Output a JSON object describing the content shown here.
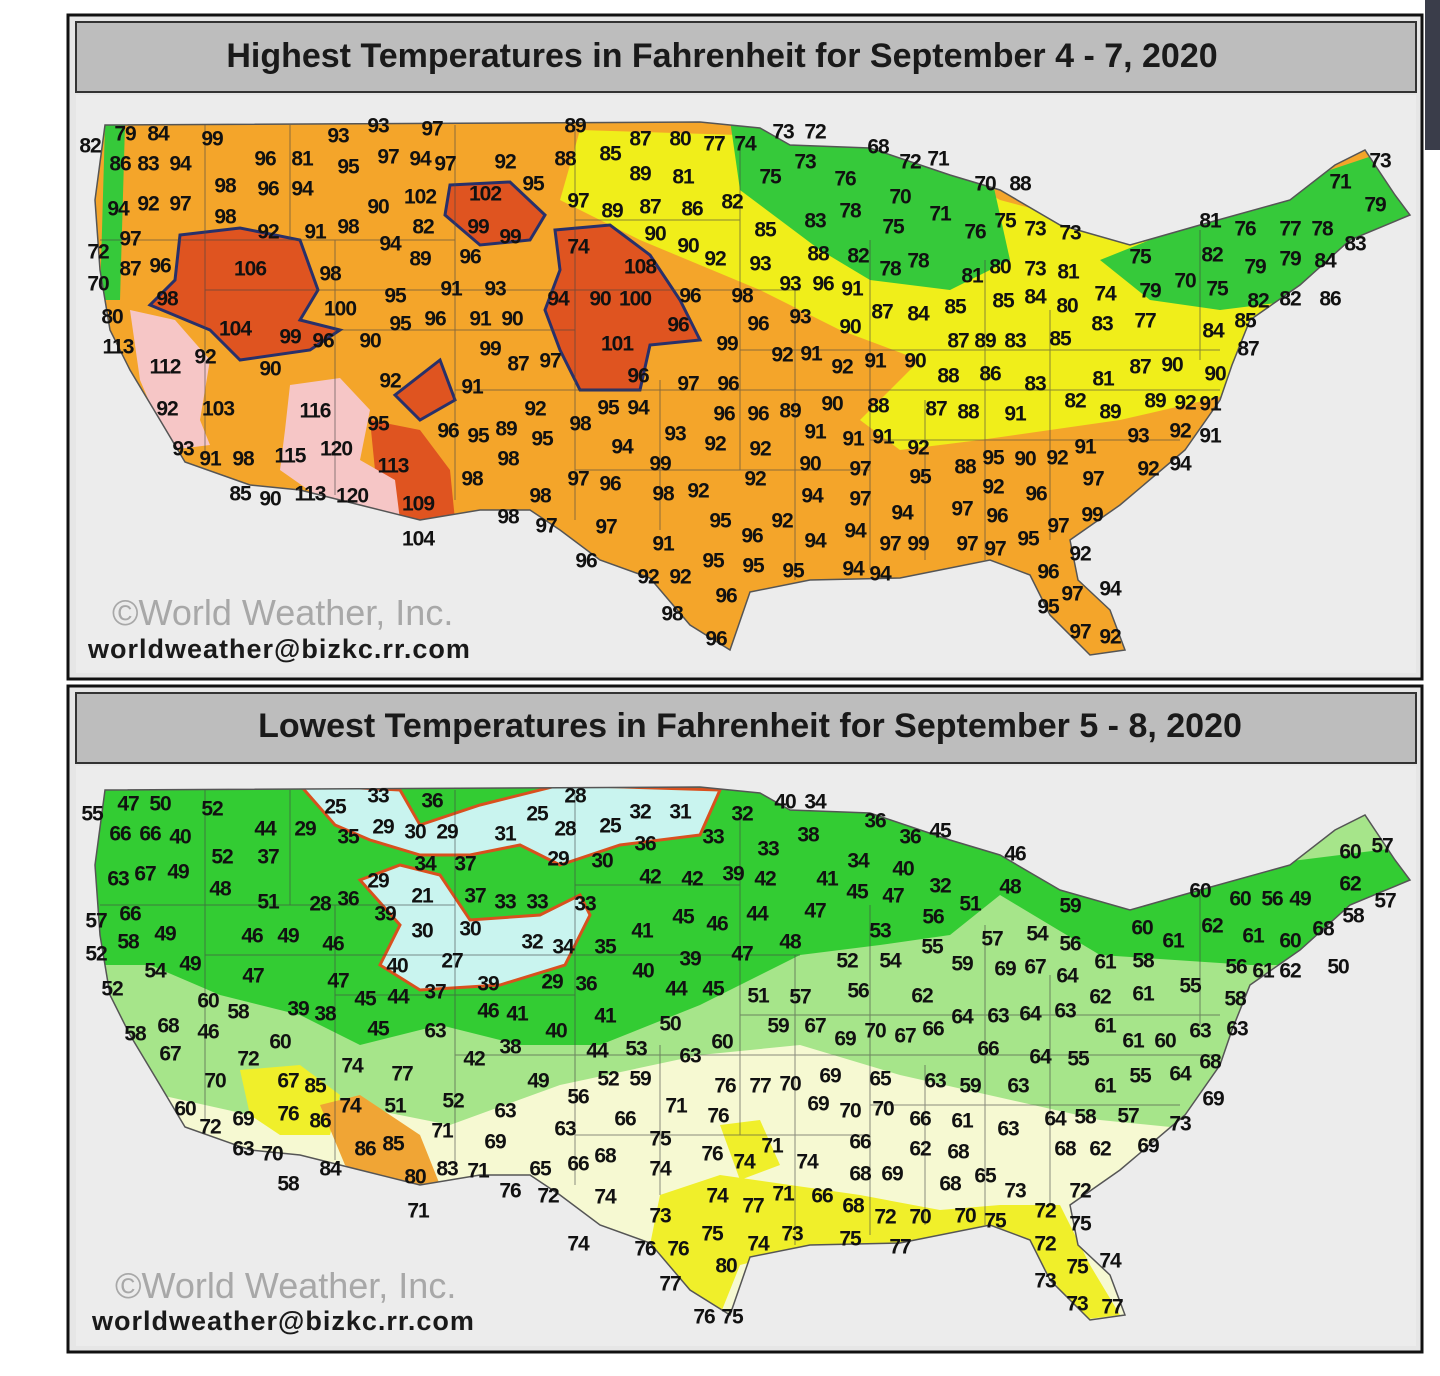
{
  "maps": [
    {
      "title": "Highest Temperatures in Fahrenheit for September 4 - 7, 2020",
      "credit": "©World Weather, Inc.",
      "email": "worldweather@bizkc.rr.com",
      "labels": [
        82,
        79,
        84,
        99,
        93,
        93,
        97,
        89,
        87,
        80,
        77,
        74,
        73,
        72,
        68,
        86,
        83,
        94,
        96,
        81,
        95,
        97,
        94,
        97,
        92,
        88,
        85,
        89,
        81,
        75,
        73,
        72,
        71,
        98,
        96,
        94,
        95,
        97,
        90,
        102,
        102,
        76,
        70,
        70,
        88,
        73,
        71,
        79,
        94,
        92,
        97,
        98,
        92,
        91,
        98,
        82,
        99,
        99,
        89,
        87,
        86,
        82,
        85,
        83,
        78,
        75,
        71,
        76,
        75,
        73,
        73,
        81,
        76,
        77,
        78,
        83,
        72,
        97,
        94,
        89,
        96,
        74,
        90,
        90,
        92,
        93,
        88,
        82,
        78,
        78,
        81,
        80,
        73,
        81,
        75,
        82,
        79,
        79,
        84,
        70,
        87,
        96,
        106,
        98,
        108,
        98,
        95,
        91,
        93,
        94,
        90,
        100,
        96,
        98,
        93,
        96,
        91,
        85,
        85,
        84,
        80,
        74,
        79,
        70,
        75,
        82,
        82,
        86,
        80,
        100,
        104,
        95,
        96,
        91,
        90,
        96,
        96,
        93,
        90,
        87,
        84,
        83,
        77,
        84,
        85,
        113,
        99,
        96,
        90,
        99,
        101,
        99,
        87,
        89,
        83,
        85,
        87,
        112,
        92,
        87,
        97,
        92,
        91,
        92,
        91,
        90,
        88,
        86,
        83,
        81,
        87,
        90,
        90,
        90,
        92,
        91,
        96,
        97,
        96,
        92,
        103,
        116,
        95,
        94,
        96,
        96,
        89,
        90,
        88,
        87,
        88,
        91,
        82,
        89,
        89,
        92,
        91,
        95,
        96,
        95,
        89,
        92,
        95,
        98,
        93,
        92,
        92,
        91,
        91,
        91,
        92,
        95,
        90,
        92,
        91,
        93,
        92,
        91,
        93,
        91,
        98,
        115,
        120,
        98,
        94,
        113,
        99,
        90,
        97,
        95,
        88,
        97,
        92,
        94,
        85,
        90,
        113,
        120,
        98,
        97,
        96,
        98,
        92,
        92,
        94,
        97,
        92,
        96,
        109,
        98,
        98,
        97,
        97,
        95,
        96,
        92,
        94,
        97,
        96,
        97,
        99,
        104,
        91,
        94,
        94,
        97,
        99,
        97,
        97,
        95,
        92,
        96,
        95,
        95,
        95,
        94,
        94,
        96,
        92,
        92,
        97,
        94,
        96,
        95,
        98,
        97,
        92,
        96
      ]
    },
    {
      "title": "Lowest Temperatures in Fahrenheit for September 5 - 8, 2020",
      "credit": "©World Weather, Inc.",
      "email": "worldweather@bizkc.rr.com",
      "labels": [
        55,
        47,
        50,
        52,
        44,
        29,
        35,
        25,
        33,
        36,
        29,
        30,
        29,
        31,
        25,
        28,
        28,
        25,
        32,
        31,
        32,
        40,
        34,
        66,
        66,
        40,
        38,
        36,
        36,
        45,
        36,
        33,
        33,
        46,
        60,
        57,
        52,
        37,
        34,
        37,
        29,
        30,
        42,
        42,
        39,
        42,
        41,
        34,
        40,
        63,
        67,
        49,
        48,
        29,
        32,
        48,
        62,
        57,
        51,
        28,
        36,
        21,
        37,
        33,
        33,
        33,
        45,
        47,
        51,
        59,
        60,
        60,
        56,
        49,
        58,
        57,
        66,
        39,
        44,
        47,
        45,
        46,
        56,
        53,
        60,
        62,
        61,
        60,
        68,
        52,
        58,
        49,
        46,
        49,
        46,
        30,
        30,
        32,
        34,
        35,
        41,
        48,
        57,
        54,
        56,
        61,
        54,
        49,
        47,
        40,
        27,
        39,
        29,
        36,
        40,
        39,
        47,
        52,
        54,
        55,
        59,
        69,
        67,
        64,
        61,
        58,
        56,
        61,
        62,
        50,
        52,
        47,
        45,
        44,
        37,
        44,
        45,
        51,
        57,
        56,
        62,
        62,
        61,
        55,
        58,
        60,
        58,
        39,
        38,
        46,
        41,
        41,
        64,
        63,
        64,
        63,
        58,
        68,
        46,
        45,
        63,
        40,
        50,
        59,
        67,
        69,
        70,
        67,
        66,
        61,
        61,
        60,
        63,
        63,
        67,
        60,
        44,
        53,
        60,
        66,
        64,
        55,
        68,
        72,
        74,
        42,
        38,
        63,
        64,
        70,
        67,
        85,
        77,
        49,
        52,
        59,
        76,
        77,
        70,
        69,
        65,
        63,
        59,
        63,
        61,
        55,
        69,
        60,
        69,
        76,
        86,
        74,
        51,
        52,
        63,
        56,
        71,
        76,
        69,
        70,
        70,
        66,
        61,
        63,
        64,
        58,
        57,
        73,
        72,
        71,
        63,
        66,
        69,
        75,
        66,
        62,
        68,
        68,
        62,
        69,
        63,
        70,
        86,
        85,
        76,
        74,
        71,
        74,
        68,
        69,
        65,
        58,
        84,
        80,
        83,
        71,
        76,
        72,
        65,
        66,
        68,
        74,
        68,
        73,
        72,
        71,
        74,
        74,
        77,
        71,
        66,
        68,
        72,
        70,
        70,
        75,
        72,
        75,
        73,
        75,
        74,
        73,
        75,
        77,
        72,
        74,
        76,
        76,
        80,
        75,
        74,
        73,
        77,
        76,
        75,
        73,
        77
      ]
    }
  ]
}
